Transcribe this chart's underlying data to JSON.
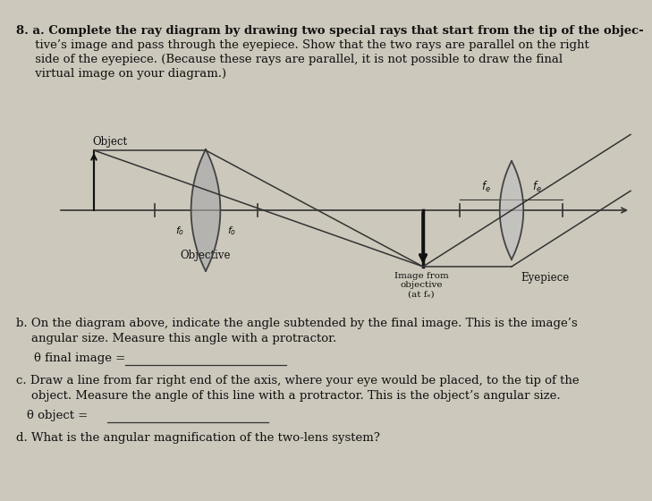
{
  "bg_color": "#ccc8bc",
  "text_color": "#111111",
  "title_line1": "8. a. Complete the ray diagram by drawing two special rays that start from the tip of the objec-",
  "title_line2": "     tive’s image and pass through the eyepiece. Show that the two rays are parallel on the right",
  "title_line3": "     side of the eyepiece. (Because these rays are parallel, it is not possible to draw the final",
  "title_line4": "     virtual image on your diagram.)",
  "label_object": "Object",
  "label_objective": "Objective",
  "label_image": "Image from\nobjective\n(at fₑ)",
  "label_eyepiece": "Eyepiece",
  "label_fo": "fₒ",
  "label_fe": "fₑ",
  "qb_line1": "b. On the diagram above, indicate the angle subtended by the final image. This is the image’s",
  "qb_line2": "    angular size. Measure this angle with a protractor.",
  "qb_theta": "θ final image = ",
  "qc_line1": "c. Draw a line from far right end of the axis, where your eye would be placed, to the tip of the",
  "qc_line2": "    object. Measure the angle of this line with a protractor. This is the object’s angular size.",
  "qc_theta": "θ object = ",
  "qd": "d. What is the angular magnification of the two-lens system?"
}
